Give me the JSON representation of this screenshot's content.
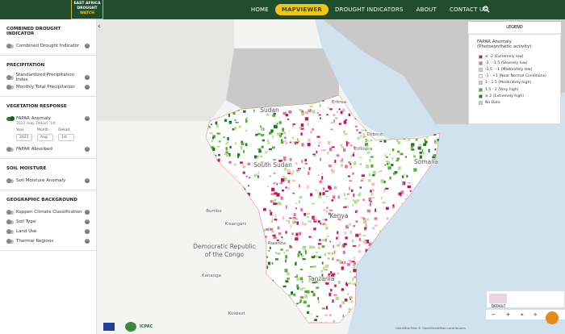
{
  "nav": {
    "logo": [
      "EAST AFRICA",
      "DROUGHT",
      "WATCH"
    ],
    "items": [
      {
        "label": "HOME"
      },
      {
        "label": "MAPVIEWER",
        "active": true
      },
      {
        "label": "DROUGHT INDICATORS"
      },
      {
        "label": "ABOUT"
      },
      {
        "label": "CONTACT US"
      }
    ]
  },
  "sidebar": {
    "sections": [
      {
        "title": "COMBINED DROUGHT INDICATOR",
        "items": [
          {
            "label": "Combined Drought Indicator"
          }
        ]
      },
      {
        "title": "PRECIPITATION",
        "items": [
          {
            "label": "Standardized Precipitation Index"
          },
          {
            "label": "Monthly Total Precipitation"
          }
        ]
      },
      {
        "title": "VEGETATION RESPONSE",
        "items": [
          {
            "label": "FAPAR Anomaly",
            "on": true
          },
          {
            "label": "FAPAR Absorbed"
          }
        ]
      },
      {
        "title": "SOIL MOISTURE",
        "items": [
          {
            "label": "Soil Moisture Anomaly"
          }
        ]
      },
      {
        "title": "GEOGRAPHIC BACKGROUND",
        "items": [
          {
            "label": "Koppen Climate Classification"
          },
          {
            "label": "Soil Type"
          },
          {
            "label": "Land Use"
          },
          {
            "label": "Thermal Regions"
          }
        ]
      }
    ],
    "active": {
      "subtitle": "2021 Aug, Dekad: 1st",
      "fields": [
        {
          "label": "Year",
          "value": "2021"
        },
        {
          "label": "Month",
          "value": "Aug"
        },
        {
          "label": "Dekad",
          "value": "1st"
        }
      ]
    }
  },
  "legend": {
    "header": "LEGEND",
    "title": [
      "FAPAR Anomaly",
      "(Photosynthetic activity)"
    ],
    "entries": [
      {
        "label": "≤ -2 (Extremely low)",
        "color": "#c2185b"
      },
      {
        "label": "-2 - -1.5 (Severely low)",
        "color": "#e57399"
      },
      {
        "label": "-1.5 - -1 (Moderately low)",
        "color": "#f4bccb"
      },
      {
        "label": "-1 - +1 (Near Normal Conditions)",
        "color": "#ffffff"
      },
      {
        "label": "1 - 1.5 (Moderately high)",
        "color": "#b5e08a"
      },
      {
        "label": "1.5 - 2 (Very high)",
        "color": "#5aaa3a"
      },
      {
        "label": "≥ 2 (Extremely high)",
        "color": "#1e7a1e"
      },
      {
        "label": "No Data",
        "color": "#cccccc"
      }
    ]
  },
  "map_labels": [
    "Sudan",
    "Eritrea",
    "Djibouti",
    "Ethiopia",
    "South Sudan",
    "Somalia",
    "Kenya",
    "Bumba",
    "Kisangani",
    "Democratic Republic",
    "of the Congo",
    "Rwanda",
    "Tanzania",
    "Kananga",
    "Kolwezi"
  ],
  "footer": {
    "logo": "ICPAC",
    "basemap": "DEFAULT",
    "attribution": "OpenMapTiles © OpenStreetMap contributors"
  }
}
